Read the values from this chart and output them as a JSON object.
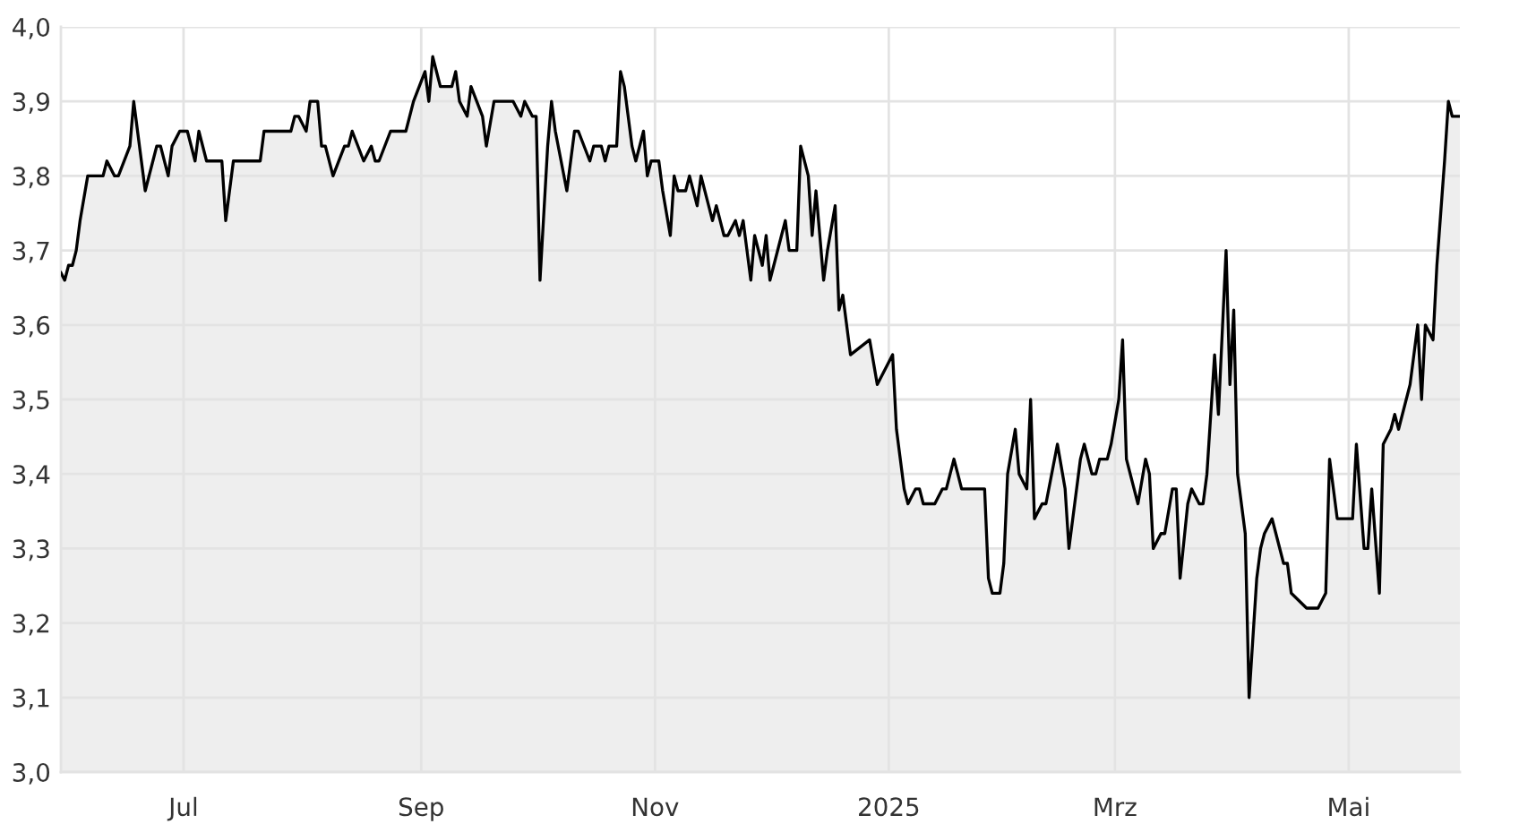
{
  "chart_data": {
    "type": "area",
    "color": "#000000",
    "line_style": "solid",
    "grid": true,
    "xlim": [
      "2024-05-30",
      "2025-05-30"
    ],
    "ylim": [
      3.0,
      4.0
    ],
    "xticks": [
      {
        "value": "2024-07-01",
        "label": "Jul"
      },
      {
        "value": "2024-09-01",
        "label": "Sep"
      },
      {
        "value": "2024-11-01",
        "label": "Nov"
      },
      {
        "value": "2025-01-01",
        "label": "2025"
      },
      {
        "value": "2025-03-01",
        "label": "Mrz"
      },
      {
        "value": "2025-05-01",
        "label": "Mai"
      }
    ],
    "yticks": [
      {
        "value": 3.0,
        "label": "3,0"
      },
      {
        "value": 3.1,
        "label": "3,1"
      },
      {
        "value": 3.2,
        "label": "3,2"
      },
      {
        "value": 3.3,
        "label": "3,3"
      },
      {
        "value": 3.4,
        "label": "3,4"
      },
      {
        "value": 3.5,
        "label": "3,5"
      },
      {
        "value": 3.6,
        "label": "3,6"
      },
      {
        "value": 3.7,
        "label": "3,7"
      },
      {
        "value": 3.8,
        "label": "3,8"
      },
      {
        "value": 3.9,
        "label": "3,9"
      },
      {
        "value": 4.0,
        "label": "4,0"
      }
    ],
    "x": [
      "2024-05-30",
      "2024-05-31",
      "2024-06-01",
      "2024-06-02",
      "2024-06-03",
      "2024-06-04",
      "2024-06-06",
      "2024-06-10",
      "2024-06-11",
      "2024-06-13",
      "2024-06-14",
      "2024-06-17",
      "2024-06-18",
      "2024-06-20",
      "2024-06-21",
      "2024-06-23",
      "2024-06-24",
      "2024-06-25",
      "2024-06-27",
      "2024-06-28",
      "2024-06-30",
      "2024-07-02",
      "2024-07-04",
      "2024-07-05",
      "2024-07-07",
      "2024-07-11",
      "2024-07-12",
      "2024-07-14",
      "2024-07-21",
      "2024-07-22",
      "2024-07-29",
      "2024-07-30",
      "2024-07-31",
      "2024-08-02",
      "2024-08-03",
      "2024-08-05",
      "2024-08-06",
      "2024-08-07",
      "2024-08-09",
      "2024-08-12",
      "2024-08-13",
      "2024-08-14",
      "2024-08-17",
      "2024-08-19",
      "2024-08-20",
      "2024-08-21",
      "2024-08-24",
      "2024-08-28",
      "2024-08-30",
      "2024-09-02",
      "2024-09-03",
      "2024-09-04",
      "2024-09-06",
      "2024-09-09",
      "2024-09-10",
      "2024-09-11",
      "2024-09-13",
      "2024-09-14",
      "2024-09-17",
      "2024-09-18",
      "2024-09-20",
      "2024-09-25",
      "2024-09-27",
      "2024-09-28",
      "2024-09-30",
      "2024-10-01",
      "2024-10-02",
      "2024-10-04",
      "2024-10-05",
      "2024-10-06",
      "2024-10-09",
      "2024-10-11",
      "2024-10-12",
      "2024-10-15",
      "2024-10-16",
      "2024-10-18",
      "2024-10-19",
      "2024-10-20",
      "2024-10-22",
      "2024-10-23",
      "2024-10-24",
      "2024-10-26",
      "2024-10-27",
      "2024-10-29",
      "2024-10-30",
      "2024-10-31",
      "2024-11-02",
      "2024-11-03",
      "2024-11-05",
      "2024-11-06",
      "2024-11-07",
      "2024-11-09",
      "2024-11-10",
      "2024-11-12",
      "2024-11-13",
      "2024-11-15",
      "2024-11-16",
      "2024-11-17",
      "2024-11-19",
      "2024-11-20",
      "2024-11-22",
      "2024-11-23",
      "2024-11-24",
      "2024-11-26",
      "2024-11-27",
      "2024-11-29",
      "2024-11-30",
      "2024-12-01",
      "2024-12-02",
      "2024-12-04",
      "2024-12-05",
      "2024-12-06",
      "2024-12-08",
      "2024-12-09",
      "2024-12-11",
      "2024-12-12",
      "2024-12-13",
      "2024-12-15",
      "2024-12-16",
      "2024-12-18",
      "2024-12-19",
      "2024-12-20",
      "2024-12-22",
      "2024-12-27",
      "2024-12-29",
      "2025-01-02",
      "2025-01-03",
      "2025-01-05",
      "2025-01-06",
      "2025-01-08",
      "2025-01-09",
      "2025-01-10",
      "2025-01-13",
      "2025-01-15",
      "2025-01-16",
      "2025-01-18",
      "2025-01-19",
      "2025-01-20",
      "2025-01-26",
      "2025-01-27",
      "2025-01-28",
      "2025-01-30",
      "2025-01-31",
      "2025-02-01",
      "2025-02-03",
      "2025-02-04",
      "2025-02-06",
      "2025-02-07",
      "2025-02-08",
      "2025-02-10",
      "2025-02-11",
      "2025-02-14",
      "2025-02-16",
      "2025-02-17",
      "2025-02-20",
      "2025-02-21",
      "2025-02-23",
      "2025-02-24",
      "2025-02-25",
      "2025-02-27",
      "2025-02-28",
      "2025-03-02",
      "2025-03-03",
      "2025-03-04",
      "2025-03-06",
      "2025-03-07",
      "2025-03-09",
      "2025-03-10",
      "2025-03-11",
      "2025-03-13",
      "2025-03-14",
      "2025-03-16",
      "2025-03-17",
      "2025-03-18",
      "2025-03-20",
      "2025-03-21",
      "2025-03-23",
      "2025-03-24",
      "2025-03-25",
      "2025-03-27",
      "2025-03-28",
      "2025-03-30",
      "2025-03-31",
      "2025-04-01",
      "2025-04-02",
      "2025-04-04",
      "2025-04-05",
      "2025-04-07",
      "2025-04-08",
      "2025-04-09",
      "2025-04-11",
      "2025-04-12",
      "2025-04-14",
      "2025-04-15",
      "2025-04-16",
      "2025-04-20",
      "2025-04-23",
      "2025-04-25",
      "2025-04-26",
      "2025-04-28",
      "2025-05-02",
      "2025-05-03",
      "2025-05-05",
      "2025-05-06",
      "2025-05-07",
      "2025-05-09",
      "2025-05-10",
      "2025-05-12",
      "2025-05-13",
      "2025-05-14",
      "2025-05-16",
      "2025-05-17",
      "2025-05-19",
      "2025-05-20",
      "2025-05-21",
      "2025-05-23",
      "2025-05-24",
      "2025-05-26",
      "2025-05-27",
      "2025-05-28",
      "2025-05-30"
    ],
    "values": [
      3.67,
      3.66,
      3.68,
      3.68,
      3.7,
      3.74,
      3.8,
      3.8,
      3.82,
      3.8,
      3.8,
      3.84,
      3.9,
      3.82,
      3.78,
      3.82,
      3.84,
      3.84,
      3.8,
      3.84,
      3.86,
      3.86,
      3.82,
      3.86,
      3.82,
      3.82,
      3.74,
      3.82,
      3.82,
      3.86,
      3.86,
      3.88,
      3.88,
      3.86,
      3.9,
      3.9,
      3.84,
      3.84,
      3.8,
      3.84,
      3.84,
      3.86,
      3.82,
      3.84,
      3.82,
      3.82,
      3.86,
      3.86,
      3.9,
      3.94,
      3.9,
      3.96,
      3.92,
      3.92,
      3.94,
      3.9,
      3.88,
      3.92,
      3.88,
      3.84,
      3.9,
      3.9,
      3.88,
      3.9,
      3.88,
      3.88,
      3.66,
      3.84,
      3.9,
      3.86,
      3.78,
      3.86,
      3.86,
      3.82,
      3.84,
      3.84,
      3.82,
      3.84,
      3.84,
      3.94,
      3.92,
      3.84,
      3.82,
      3.86,
      3.8,
      3.82,
      3.82,
      3.78,
      3.72,
      3.8,
      3.78,
      3.78,
      3.8,
      3.76,
      3.8,
      3.76,
      3.74,
      3.76,
      3.72,
      3.72,
      3.74,
      3.72,
      3.74,
      3.66,
      3.72,
      3.68,
      3.72,
      3.66,
      3.68,
      3.72,
      3.74,
      3.7,
      3.7,
      3.84,
      3.8,
      3.72,
      3.78,
      3.66,
      3.7,
      3.76,
      3.62,
      3.64,
      3.56,
      3.58,
      3.52,
      3.56,
      3.46,
      3.38,
      3.36,
      3.38,
      3.38,
      3.36,
      3.36,
      3.38,
      3.38,
      3.42,
      3.4,
      3.38,
      3.38,
      3.26,
      3.24,
      3.24,
      3.28,
      3.4,
      3.46,
      3.4,
      3.38,
      3.5,
      3.34,
      3.36,
      3.36,
      3.44,
      3.38,
      3.3,
      3.42,
      3.44,
      3.4,
      3.4,
      3.42,
      3.42,
      3.44,
      3.5,
      3.58,
      3.42,
      3.38,
      3.36,
      3.42,
      3.4,
      3.3,
      3.32,
      3.32,
      3.38,
      3.38,
      3.26,
      3.36,
      3.38,
      3.36,
      3.36,
      3.4,
      3.56,
      3.48,
      3.7,
      3.52,
      3.62,
      3.4,
      3.32,
      3.1,
      3.26,
      3.3,
      3.32,
      3.34,
      3.32,
      3.28,
      3.28,
      3.24,
      3.22,
      3.22,
      3.24,
      3.42,
      3.34,
      3.34,
      3.44,
      3.3,
      3.3,
      3.38,
      3.24,
      3.44,
      3.46,
      3.48,
      3.46,
      3.5,
      3.52,
      3.6,
      3.5,
      3.6,
      3.58,
      3.68,
      3.82,
      3.9,
      3.88,
      3.88
    ]
  }
}
